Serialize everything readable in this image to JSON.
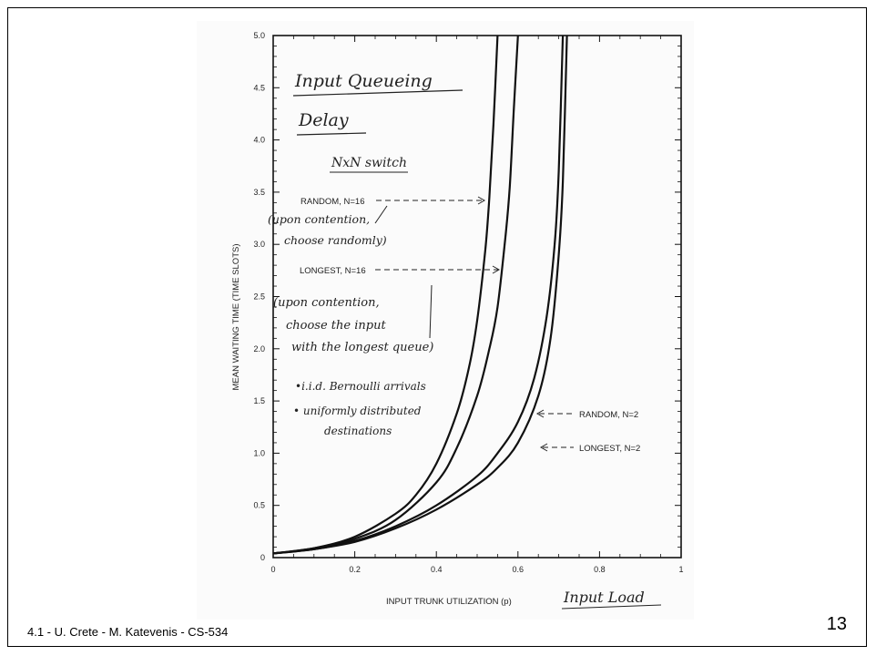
{
  "slide": {
    "footer": "4.1  - U. Crete - M. Katevenis - CS-534",
    "page_number": "13"
  },
  "chart_data": {
    "type": "line",
    "title": "Input Queueing",
    "subtitle": "Delay",
    "xlabel": "INPUT TRUNK UTILIZATION (p)",
    "xlabel_handwritten": "Input Load",
    "ylabel": "MEAN WAITING TIME (TIME SLOTS)",
    "xlim": [
      0,
      1
    ],
    "ylim": [
      0,
      5
    ],
    "x_ticks": [
      "0",
      "0.2",
      "0.4",
      "0.6",
      "0.8",
      "1"
    ],
    "x_tick_values": [
      0,
      0.2,
      0.4,
      0.6,
      0.8,
      1
    ],
    "y_ticks": [
      "0",
      "0.5",
      "1.0",
      "1.5",
      "2.0",
      "2.5",
      "3.0",
      "3.5",
      "4.0",
      "4.5",
      "5.0"
    ],
    "y_tick_values": [
      0,
      0.5,
      1,
      1.5,
      2,
      2.5,
      3,
      3.5,
      4,
      4.5,
      5
    ],
    "grid": false,
    "series": [
      {
        "name": "RANDOM, N=16",
        "x": [
          0,
          0.1,
          0.2,
          0.3,
          0.35,
          0.4,
          0.45,
          0.48,
          0.5,
          0.52,
          0.53,
          0.54,
          0.55
        ],
        "y": [
          0.04,
          0.09,
          0.2,
          0.42,
          0.6,
          0.9,
          1.38,
          1.82,
          2.27,
          2.95,
          3.45,
          4.15,
          5.0
        ]
      },
      {
        "name": "LONGEST, N=16",
        "x": [
          0,
          0.1,
          0.2,
          0.3,
          0.4,
          0.45,
          0.5,
          0.53,
          0.55,
          0.57,
          0.58,
          0.59,
          0.6
        ],
        "y": [
          0.04,
          0.09,
          0.18,
          0.36,
          0.72,
          1.05,
          1.55,
          2.0,
          2.4,
          3.1,
          3.55,
          4.3,
          5.0
        ]
      },
      {
        "name": "RANDOM, N=2",
        "x": [
          0,
          0.1,
          0.2,
          0.3,
          0.4,
          0.5,
          0.55,
          0.6,
          0.64,
          0.67,
          0.69,
          0.7,
          0.71
        ],
        "y": [
          0.04,
          0.08,
          0.16,
          0.3,
          0.5,
          0.78,
          1.0,
          1.3,
          1.72,
          2.3,
          3.0,
          3.7,
          5.0
        ]
      },
      {
        "name": "LONGEST, N=2",
        "x": [
          0,
          0.1,
          0.2,
          0.3,
          0.4,
          0.5,
          0.55,
          0.6,
          0.65,
          0.68,
          0.7,
          0.71,
          0.72
        ],
        "y": [
          0.04,
          0.08,
          0.15,
          0.28,
          0.46,
          0.7,
          0.86,
          1.1,
          1.55,
          2.1,
          2.9,
          3.6,
          5.0
        ]
      }
    ],
    "annotations": {
      "switch": "NxN switch",
      "random16": "RANDOM, N=16",
      "random16_note_1": "(upon contention,",
      "random16_note_2": "choose randomly)",
      "longest16": "LONGEST, N=16",
      "longest16_note_1": "(upon contention,",
      "longest16_note_2": "choose the input",
      "longest16_note_3": "with the longest queue)",
      "bullet_1": "•i.i.d. Bernoulli arrivals",
      "bullet_2": "• uniformly distributed",
      "bullet_3": "destinations",
      "random2": "RANDOM, N=2",
      "longest2": "LONGEST, N=2"
    }
  }
}
